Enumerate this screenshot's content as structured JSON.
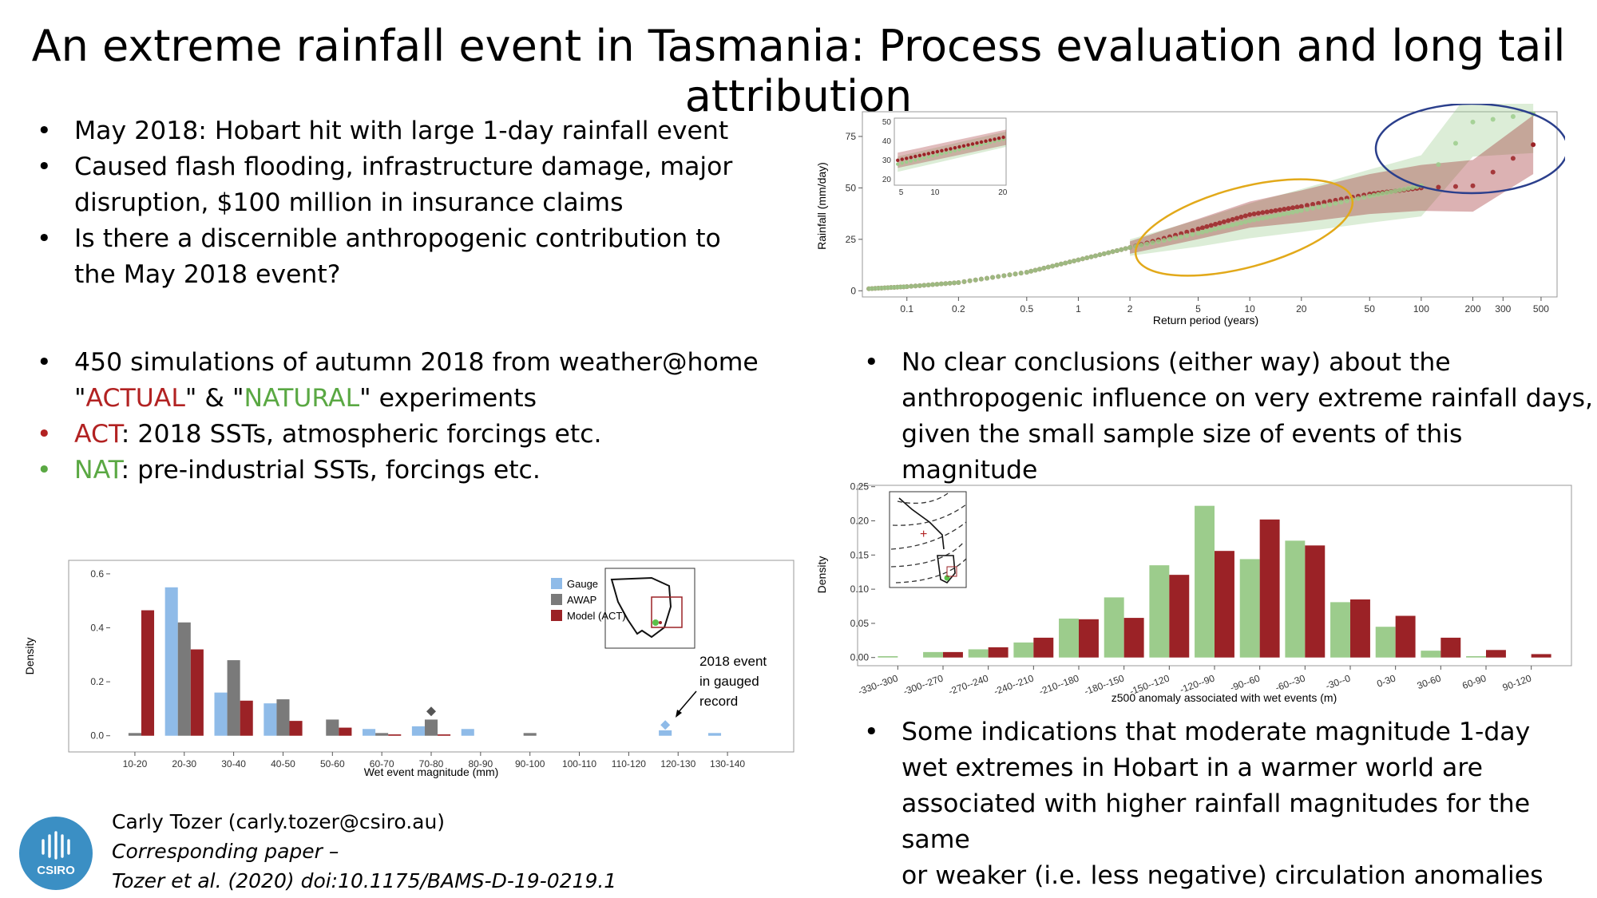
{
  "title": "An extreme rainfall event in Tasmania: Process evaluation and long tail attribution",
  "bullets_top": [
    "May 2018: Hobart hit with large 1-day rainfall event",
    "Caused flash flooding, infrastructure damage, major",
    "disruption, $100 million in insurance claims",
    "Is there a discernible anthropogenic contribution to",
    "the May 2018 event?"
  ],
  "bullets_mid": {
    "sim_line1": "450 simulations of autumn 2018 from weather@home",
    "q1": "\"",
    "actual": "ACTUAL",
    "amp": "\" & \"",
    "natural": "NATURAL",
    "sim_tail": "\" experiments",
    "act_label": "ACT",
    "act_text": ": 2018 SSTs, atmospheric forcings etc.",
    "nat_label": "NAT",
    "nat_text": ": pre-industrial SSTs, forcings etc."
  },
  "bullets_right_top": [
    "No clear conclusions (either way) about the",
    "anthropogenic influence on very extreme rainfall days,",
    "given the small sample size of events of this magnitude"
  ],
  "bullets_right_bottom": [
    "Some indications that moderate magnitude 1-day",
    "wet extremes in Hobart in a warmer world are",
    "associated with higher rainfall magnitudes for the same",
    "or weaker (i.e. less negative) circulation anomalies"
  ],
  "footer": {
    "author": "Carly Tozer (carly.tozer@csiro.au)",
    "paper_label": "Corresponding paper –",
    "citation": "Tozer et al. (2020) doi:10.1175/BAMS-D-19-0219.1",
    "logo_text": "CSIRO"
  },
  "colors": {
    "act": "#9b2226",
    "nat": "#9ccc8c",
    "gauge": "#8fbbe8",
    "awap": "#7a7a7a",
    "red_text": "#b22222",
    "green_text": "#5aa843"
  },
  "chart_data": [
    {
      "type": "scatter",
      "xlabel": "Return period (years)",
      "ylabel": "Rainfall (mm/day)",
      "x_scale": "log",
      "x_ticks": [
        0.1,
        0.2,
        0.5,
        1,
        2,
        5,
        10,
        20,
        50,
        100,
        200,
        300,
        500
      ],
      "x_tick_labels": [
        "0.1",
        "0.2",
        "0.5",
        "1",
        "2",
        "5",
        "10",
        "20",
        "50",
        "100",
        "200",
        "300",
        "500"
      ],
      "y_ticks": [
        0,
        25,
        50,
        75
      ],
      "y_tick_labels": [
        "0",
        "25",
        "50",
        "75"
      ],
      "xlim": [
        0.055,
        620
      ],
      "ylim": [
        -3,
        87
      ],
      "series": [
        {
          "color": "#9b2226",
          "x": [
            0.06,
            0.1,
            0.2,
            0.5,
            1,
            2,
            5,
            10,
            20,
            50,
            100,
            200,
            450
          ],
          "y": [
            1,
            2,
            4,
            9,
            15,
            21,
            30,
            37,
            41,
            47,
            50,
            51,
            71
          ]
        },
        {
          "color": "#9ccc8c",
          "x": [
            0.06,
            0.1,
            0.2,
            0.5,
            1,
            2,
            5,
            10,
            20,
            50,
            100,
            200,
            450
          ],
          "y": [
            1,
            2,
            4,
            9,
            15,
            21,
            28,
            34,
            39,
            46,
            51,
            82,
            86
          ]
        }
      ],
      "inset": {
        "x_ticks": [
          5,
          10,
          20
        ],
        "x_tick_labels": [
          "5",
          "10",
          "20"
        ],
        "y_ticks": [
          20,
          30,
          40,
          50
        ],
        "y_tick_labels": [
          "20",
          "30",
          "40",
          "50"
        ]
      }
    },
    {
      "type": "bar",
      "xlabel": "Wet event magnitude (mm)",
      "ylabel": "Density",
      "categories": [
        "10-20",
        "20-30",
        "30-40",
        "40-50",
        "50-60",
        "60-70",
        "70-80",
        "80-90",
        "90-100",
        "100-110",
        "110-120",
        "120-130",
        "130-140"
      ],
      "series": [
        {
          "name": "Gauge",
          "color": "#8fbbe8",
          "values": [
            0.0,
            0.55,
            0.16,
            0.12,
            0.0,
            0.025,
            0.035,
            0.025,
            0.0,
            0.0,
            0.0,
            0.02,
            0.01
          ]
        },
        {
          "name": "AWAP",
          "color": "#7a7a7a",
          "values": [
            0.01,
            0.42,
            0.28,
            0.135,
            0.06,
            0.01,
            0.06,
            0.0,
            0.01,
            0.0,
            0.0,
            0.0,
            0.0
          ]
        },
        {
          "name": "Model (ACT)",
          "color": "#9b2226",
          "values": [
            0.465,
            0.32,
            0.13,
            0.055,
            0.03,
            0.005,
            0.005,
            0.0,
            0.0,
            0.0,
            0.0,
            0.0,
            0.0
          ]
        }
      ],
      "y_ticks": [
        0.0,
        0.2,
        0.4,
        0.6
      ],
      "y_tick_labels": [
        "0.0",
        "0.2",
        "0.4",
        "0.6"
      ],
      "ylim": [
        -0.06,
        0.65
      ],
      "legend": "top-right",
      "annotation": [
        "2018 event",
        "in gauged",
        "record"
      ]
    },
    {
      "type": "bar",
      "xlabel": "z500 anomaly associated with wet events (m)",
      "ylabel": "Density",
      "categories": [
        "-330--300",
        "-300--270",
        "-270--240",
        "-240--210",
        "-210--180",
        "-180--150",
        "-150--120",
        "-120--90",
        "-90--60",
        "-60--30",
        "-30--0",
        "0-30",
        "30-60",
        "60-90",
        "90-120"
      ],
      "series": [
        {
          "color": "#9ccc8c",
          "values": [
            0.002,
            0.008,
            0.012,
            0.022,
            0.057,
            0.088,
            0.135,
            0.222,
            0.144,
            0.171,
            0.081,
            0.045,
            0.01,
            0.002,
            0.0
          ]
        },
        {
          "color": "#9b2226",
          "values": [
            0.0,
            0.008,
            0.015,
            0.029,
            0.056,
            0.058,
            0.121,
            0.156,
            0.202,
            0.164,
            0.085,
            0.061,
            0.029,
            0.011,
            0.005
          ]
        }
      ],
      "y_ticks": [
        0.0,
        0.05,
        0.1,
        0.15,
        0.2,
        0.25
      ],
      "y_tick_labels": [
        "0.00",
        "0.05",
        "0.10",
        "0.15",
        "0.20",
        "0.25"
      ],
      "ylim": [
        -0.012,
        0.252
      ]
    }
  ]
}
